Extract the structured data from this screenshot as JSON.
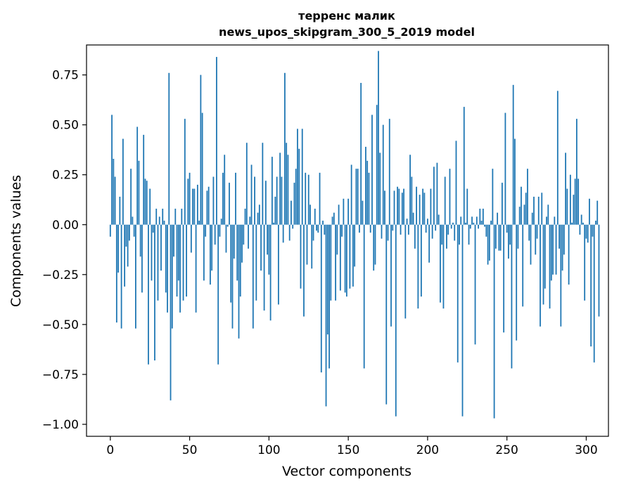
{
  "chart_data": {
    "type": "bar",
    "title": "терренс малик",
    "subtitle": "news_upos_skipgram_300_5_2019 model",
    "xlabel": "Vector components",
    "ylabel": "Components values",
    "xlim": [
      -15,
      314
    ],
    "ylim": [
      -1.06,
      0.9
    ],
    "xticks": [
      0,
      50,
      100,
      150,
      200,
      250,
      300
    ],
    "xtick_labels": [
      "0",
      "50",
      "100",
      "150",
      "200",
      "250",
      "300"
    ],
    "yticks": [
      0.75,
      0.5,
      0.25,
      0.0,
      -0.25,
      -0.5,
      -0.75,
      -1.0
    ],
    "ytick_labels": [
      "0.75",
      "0.50",
      "0.25",
      "0.00",
      "−0.25",
      "−0.50",
      "−0.75",
      "−1.00"
    ],
    "bar_color": "#1f77b4",
    "values": [
      -0.06,
      0.55,
      0.33,
      0.24,
      -0.49,
      -0.24,
      0.14,
      -0.52,
      0.43,
      -0.31,
      -0.11,
      -0.21,
      -0.08,
      0.28,
      0.04,
      -0.06,
      -0.52,
      0.49,
      0.32,
      -0.16,
      -0.34,
      0.45,
      0.23,
      0.22,
      -0.7,
      0.18,
      -0.28,
      -0.04,
      -0.68,
      0.08,
      -0.38,
      0.04,
      -0.23,
      0.08,
      0.02,
      -0.34,
      -0.44,
      0.76,
      -0.88,
      -0.52,
      -0.16,
      0.08,
      -0.36,
      -0.28,
      -0.44,
      0.08,
      -0.38,
      0.53,
      -0.36,
      0.23,
      0.26,
      -0.14,
      0.18,
      0.18,
      -0.44,
      0.2,
      0.02,
      0.75,
      0.56,
      -0.28,
      -0.06,
      0.17,
      0.19,
      -0.3,
      -0.23,
      0.24,
      -0.1,
      0.84,
      -0.7,
      -0.06,
      0.03,
      0.26,
      0.35,
      -0.14,
      -0.01,
      0.21,
      -0.39,
      -0.52,
      -0.17,
      0.26,
      -0.28,
      -0.57,
      -0.36,
      -0.19,
      -0.1,
      0.08,
      0.41,
      -0.12,
      0.04,
      0.3,
      -0.52,
      0.24,
      -0.38,
      0.06,
      0.1,
      -0.23,
      0.41,
      -0.43,
      0.22,
      -0.15,
      -0.25,
      -0.48,
      0.34,
      0.01,
      0.14,
      0.24,
      -0.4,
      0.36,
      0.24,
      -0.09,
      0.76,
      0.41,
      0.35,
      -0.08,
      0.12,
      -0.02,
      0.21,
      0.28,
      0.48,
      0.38,
      -0.32,
      0.48,
      -0.46,
      0.26,
      -0.2,
      0.25,
      0.1,
      -0.22,
      -0.08,
      0.08,
      -0.03,
      -0.04,
      0.26,
      -0.74,
      0.02,
      -0.05,
      -0.91,
      -0.55,
      -0.72,
      -0.38,
      0.04,
      0.06,
      -0.38,
      -0.15,
      0.1,
      -0.33,
      -0.06,
      0.13,
      -0.34,
      -0.36,
      0.13,
      -0.32,
      0.3,
      -0.31,
      -0.21,
      0.28,
      0.28,
      -0.04,
      0.71,
      0.12,
      -0.72,
      0.39,
      0.32,
      0.26,
      -0.04,
      0.55,
      -0.23,
      -0.2,
      0.6,
      0.87,
      0.36,
      -0.07,
      0.5,
      0.17,
      -0.9,
      -0.08,
      0.53,
      -0.51,
      -0.03,
      0.17,
      -0.96,
      0.19,
      0.18,
      -0.05,
      0.16,
      0.18,
      -0.47,
      0.03,
      -0.05,
      0.35,
      0.24,
      0.06,
      -0.12,
      0.19,
      -0.42,
      0.15,
      -0.36,
      0.18,
      0.16,
      -0.04,
      0.03,
      -0.19,
      0.18,
      -0.07,
      0.29,
      -0.03,
      0.31,
      0.05,
      -0.39,
      -0.1,
      -0.42,
      0.24,
      -0.12,
      -0.05,
      0.28,
      -0.02,
      0.01,
      -0.08,
      0.42,
      -0.69,
      -0.1,
      0.04,
      -0.96,
      0.59,
      0.01,
      0.18,
      -0.1,
      -0.02,
      0.04,
      0.01,
      -0.6,
      0.04,
      -0.02,
      0.08,
      0.02,
      0.08,
      -0.01,
      -0.06,
      -0.2,
      -0.18,
      0.02,
      0.28,
      -0.97,
      -0.12,
      0.06,
      -0.13,
      -0.13,
      0.21,
      -0.54,
      0.56,
      -0.04,
      -0.17,
      -0.1,
      -0.72,
      0.7,
      0.43,
      -0.58,
      -0.12,
      0.09,
      0.19,
      -0.41,
      0.1,
      0.16,
      0.28,
      -0.08,
      -0.2,
      0.06,
      0.14,
      -0.15,
      -0.07,
      0.14,
      -0.51,
      0.16,
      -0.4,
      -0.32,
      0.04,
      0.1,
      -0.42,
      -0.28,
      -0.25,
      0.04,
      -0.25,
      0.67,
      -0.12,
      -0.51,
      -0.23,
      -0.15,
      0.36,
      0.18,
      -0.3,
      0.25,
      0.01,
      0.15,
      0.23,
      0.53,
      0.23,
      -0.05,
      0.05,
      0.01,
      -0.38,
      -0.07,
      -0.09,
      0.13,
      -0.61,
      -0.06,
      -0.69,
      0.02,
      0.12,
      -0.46
    ]
  }
}
